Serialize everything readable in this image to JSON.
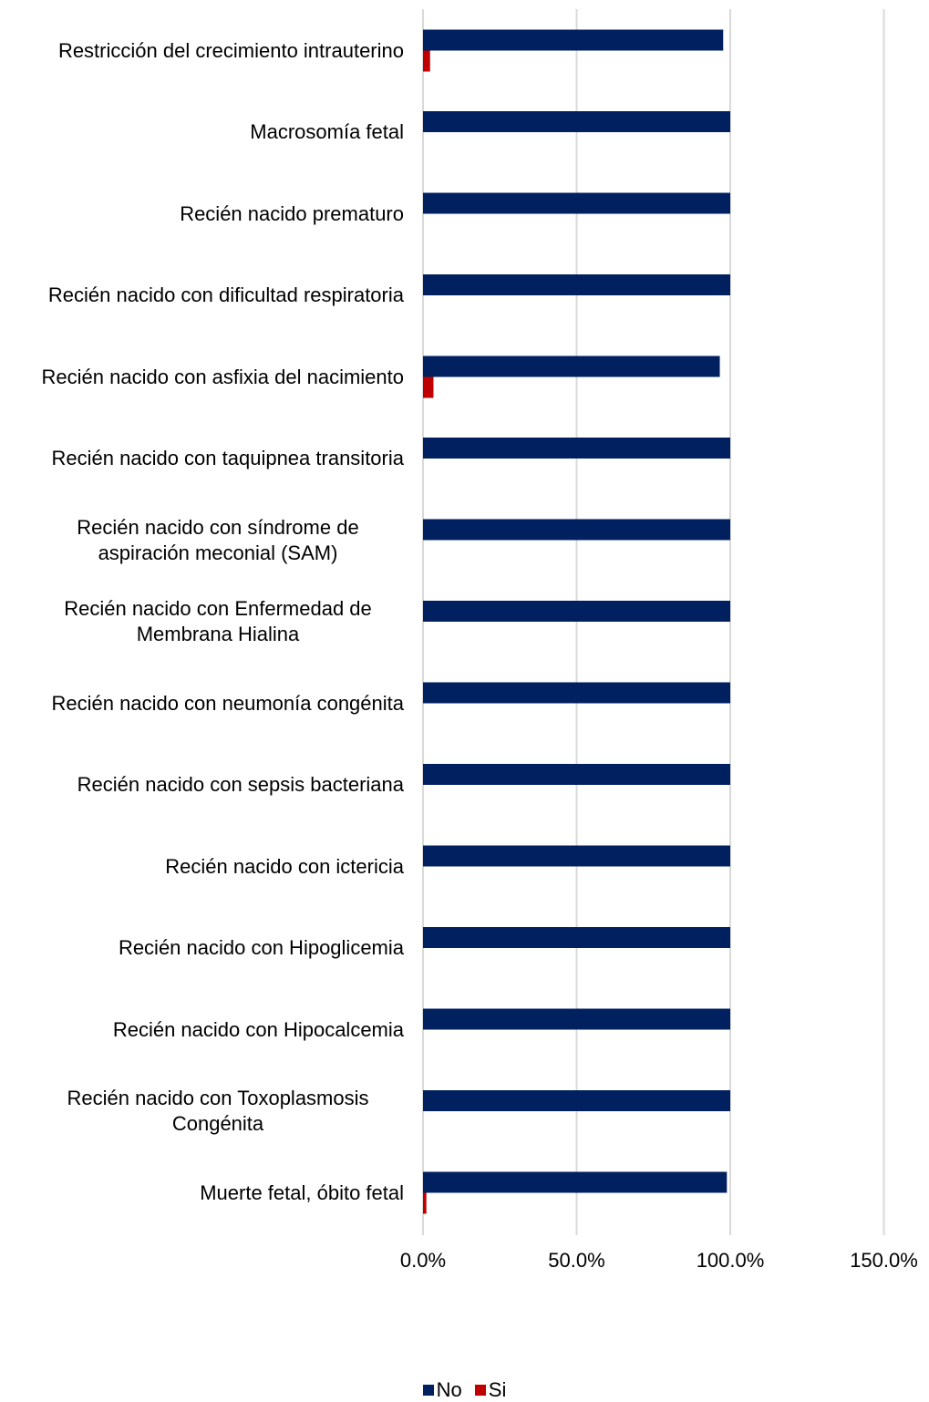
{
  "chart_data": {
    "type": "bar",
    "orientation": "horizontal",
    "categories": [
      "Restricción del crecimiento intrauterino",
      "Macrosomía fetal",
      "Recién nacido prematuro",
      "Recién nacido con dificultad respiratoria",
      "Recién nacido con asfixia del nacimiento",
      "Recién nacido con taquipnea transitoria",
      "Recién nacido con síndrome de aspiración meconial (SAM)",
      "Recién nacido con Enfermedad de Membrana Hialina",
      "Recién nacido con neumonía congénita",
      "Recién nacido con sepsis bacteriana",
      "Recién nacido con ictericia",
      "Recién nacido con Hipoglicemia",
      "Recién nacido con Hipocalcemia",
      "Recién nacido con Toxoplasmosis Congénita",
      "Muerte fetal, óbito fetal"
    ],
    "series": [
      {
        "name": "No",
        "color": "#002060",
        "values": [
          97.7,
          100,
          100,
          100,
          96.6,
          100,
          100,
          100,
          100,
          100,
          100,
          100,
          100,
          100,
          98.9
        ]
      },
      {
        "name": "Si",
        "color": "#c00000",
        "values": [
          2.3,
          0,
          0,
          0,
          3.4,
          0,
          0,
          0,
          0,
          0,
          0,
          0,
          0,
          0,
          1.1
        ]
      }
    ],
    "xlim": [
      0,
      150
    ],
    "xticks": [
      "0.0%",
      "50.0%",
      "100.0%",
      "150.0%"
    ],
    "xtick_values": [
      0,
      50,
      100,
      150
    ],
    "grid": true,
    "legend_position": "bottom",
    "title": "",
    "xlabel": "",
    "ylabel": ""
  }
}
